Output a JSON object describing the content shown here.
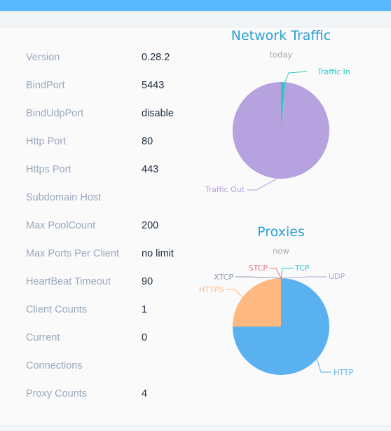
{
  "server_info": {
    "rows": [
      {
        "label": "Version",
        "value": "0.28.2"
      },
      {
        "label": "BindPort",
        "value": "5443"
      },
      {
        "label": "BindUdpPort",
        "value": "disable"
      },
      {
        "label": "Http Port",
        "value": "80"
      },
      {
        "label": "Https Port",
        "value": "443"
      },
      {
        "label": "Subdomain Host",
        "value": ""
      },
      {
        "label": "Max PoolCount",
        "value": "200"
      },
      {
        "label": "Max Ports Per Client",
        "value": "no limit"
      },
      {
        "label": "HeartBeat Timeout",
        "value": "90"
      },
      {
        "label": "Client Counts",
        "value": "1"
      },
      {
        "label": "Current",
        "value": "0"
      },
      {
        "label": "Connections",
        "value": ""
      },
      {
        "label": "Proxy Counts",
        "value": "4"
      }
    ]
  },
  "colors": {
    "header_bar": "#58b7ff",
    "title": "#2a9fd6",
    "label": "#99a9bf",
    "value": "#1f2d3d"
  },
  "chart_data": [
    {
      "type": "pie",
      "title": "Network Traffic",
      "subtitle": "today",
      "slices": [
        {
          "name": "Traffic In",
          "value": 1.4,
          "color": "#2ec7c9"
        },
        {
          "name": "Traffic Out",
          "value": 98.6,
          "color": "#b6a2de"
        }
      ]
    },
    {
      "type": "pie",
      "title": "Proxies",
      "subtitle": "now",
      "slices": [
        {
          "name": "TCP",
          "value": 0,
          "color": "#2ec7c9"
        },
        {
          "name": "UDP",
          "value": 0,
          "color": "#b6a2de"
        },
        {
          "name": "HTTP",
          "value": 3,
          "color": "#5ab1ef"
        },
        {
          "name": "HTTPS",
          "value": 1,
          "color": "#ffb980"
        },
        {
          "name": "XTCP",
          "value": 0,
          "color": "#8d98b3"
        },
        {
          "name": "STCP",
          "value": 0,
          "color": "#d87a80"
        }
      ]
    }
  ]
}
